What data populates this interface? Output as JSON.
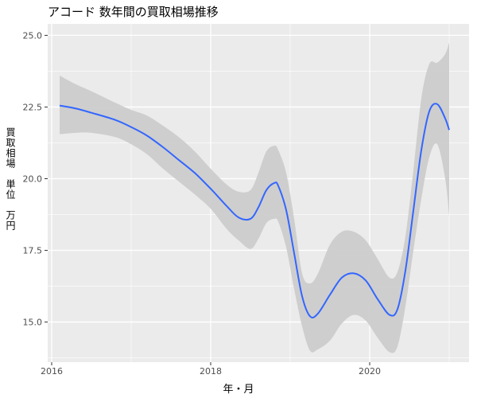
{
  "chart_data": {
    "type": "line",
    "title": "アコード 数年間の買取相場推移",
    "xlabel": "年・月",
    "ylabel": "買取相場　単位　万円",
    "xlim": [
      2015.95,
      2021.25
    ],
    "ylim": [
      13.6,
      25.4
    ],
    "x_ticks": [
      2016,
      2018,
      2020
    ],
    "x_tick_labels": [
      "2016",
      "2018",
      "2020"
    ],
    "y_ticks": [
      15.0,
      17.5,
      20.0,
      22.5,
      25.0
    ],
    "y_tick_labels": [
      "15.0",
      "17.5",
      "20.0",
      "22.5",
      "25.0"
    ],
    "grid": true,
    "legend": "none",
    "colors": {
      "line": "#3366ff",
      "ribbon": "#cccccc",
      "panel": "#ebebeb",
      "grid": "#ffffff"
    },
    "series": [
      {
        "x": [
          2016.1,
          2016.3,
          2016.5,
          2016.8,
          2017.0,
          2017.2,
          2017.4,
          2017.6,
          2017.8,
          2018.0,
          2018.2,
          2018.35,
          2018.5,
          2018.6,
          2018.7,
          2018.8,
          2018.85,
          2018.95,
          2019.05,
          2019.15,
          2019.25,
          2019.35,
          2019.5,
          2019.65,
          2019.8,
          2019.95,
          2020.1,
          2020.25,
          2020.35,
          2020.45,
          2020.55,
          2020.65,
          2020.75,
          2020.85,
          2020.95,
          2021.0
        ],
        "y": [
          22.55,
          22.45,
          22.3,
          22.05,
          21.8,
          21.5,
          21.1,
          20.65,
          20.2,
          19.65,
          19.05,
          18.65,
          18.6,
          19.0,
          19.6,
          19.85,
          19.75,
          18.9,
          17.4,
          15.9,
          15.2,
          15.3,
          15.95,
          16.55,
          16.7,
          16.45,
          15.8,
          15.25,
          15.45,
          16.8,
          18.9,
          21.0,
          22.35,
          22.6,
          22.1,
          21.7
        ],
        "upper": [
          23.6,
          23.3,
          23.05,
          22.65,
          22.4,
          22.2,
          21.85,
          21.45,
          20.95,
          20.35,
          19.8,
          19.55,
          19.6,
          20.2,
          20.95,
          21.15,
          21.0,
          20.2,
          18.6,
          16.7,
          16.35,
          16.7,
          17.7,
          18.15,
          18.15,
          17.85,
          17.2,
          16.55,
          16.75,
          18.0,
          20.3,
          22.8,
          24.0,
          24.05,
          24.35,
          24.75
        ],
        "lower": [
          21.55,
          21.6,
          21.6,
          21.45,
          21.2,
          20.85,
          20.35,
          19.9,
          19.45,
          18.95,
          18.25,
          17.85,
          17.55,
          17.9,
          18.45,
          18.6,
          18.5,
          17.6,
          16.15,
          14.85,
          14.0,
          14.05,
          14.35,
          14.95,
          15.25,
          15.05,
          14.45,
          13.95,
          14.15,
          15.55,
          17.5,
          19.3,
          20.75,
          21.2,
          20.0,
          18.7
        ]
      }
    ]
  }
}
